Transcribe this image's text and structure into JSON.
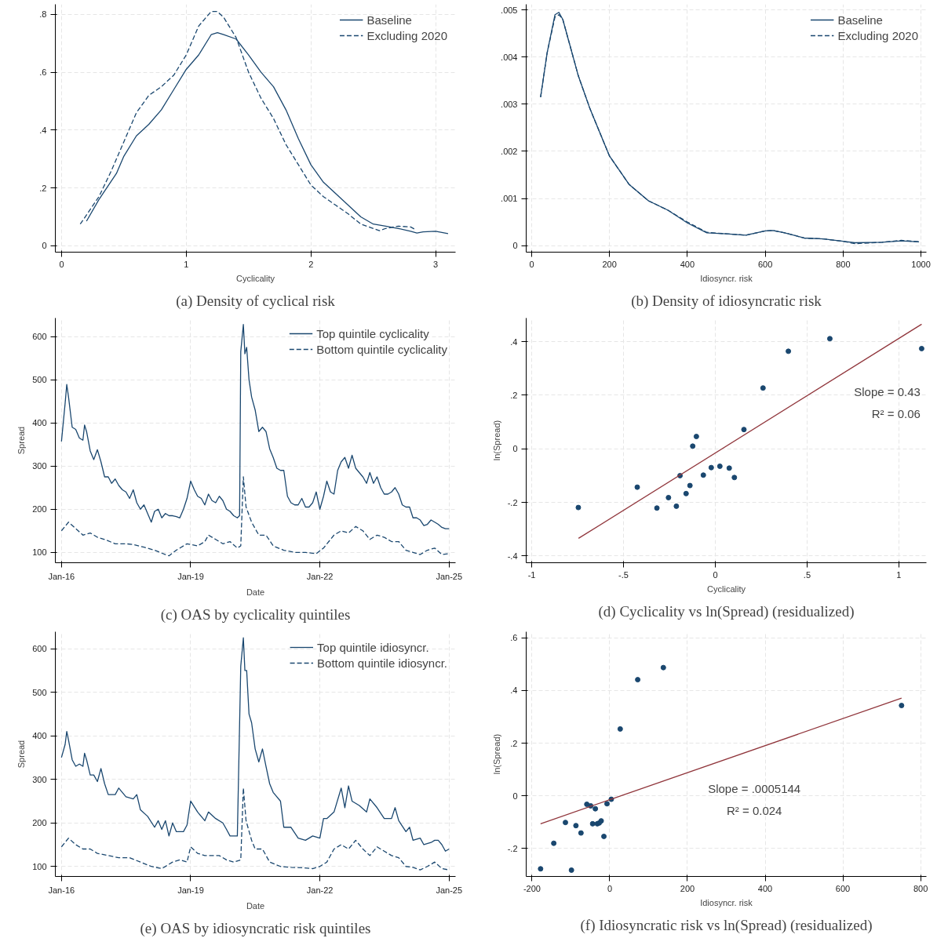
{
  "chart_data": [
    {
      "type": "line",
      "title": "(a) Density of cyclical risk",
      "xlabel": "Cyclicality",
      "xlim": [
        -0.05,
        3.16
      ],
      "ylim": [
        -0.022,
        0.835
      ],
      "xticks": [
        0,
        1,
        2,
        3
      ],
      "yticks": [
        0,
        {
          "value": 0.2,
          "label": ".2"
        },
        {
          "value": 0.4,
          "label": ".4"
        },
        {
          "value": 0.6,
          "label": ".6"
        },
        {
          "value": 0.8,
          "label": ".8"
        }
      ],
      "grid": true,
      "legend": "top right",
      "series": [
        {
          "name": "Baseline",
          "color": "#1a476f",
          "line_style": "solid",
          "x": [
            0.2,
            0.3,
            0.44,
            0.5,
            0.6,
            0.7,
            0.8,
            0.9,
            1.0,
            1.1,
            1.2,
            1.25,
            1.3,
            1.4,
            1.5,
            1.6,
            1.7,
            1.8,
            1.9,
            2.0,
            2.1,
            2.2,
            2.3,
            2.4,
            2.5,
            2.6,
            2.7,
            2.8,
            2.85,
            2.9,
            3.0,
            3.1
          ],
          "values": [
            0.085,
            0.16,
            0.25,
            0.31,
            0.38,
            0.42,
            0.47,
            0.54,
            0.61,
            0.66,
            0.73,
            0.737,
            0.73,
            0.715,
            0.66,
            0.6,
            0.55,
            0.47,
            0.37,
            0.28,
            0.22,
            0.18,
            0.14,
            0.1,
            0.075,
            0.068,
            0.06,
            0.05,
            0.044,
            0.048,
            0.05,
            0.042
          ]
        },
        {
          "name": "Excluding 2020",
          "color": "#1a476f",
          "line_style": "dashed",
          "x": [
            0.15,
            0.3,
            0.4,
            0.5,
            0.6,
            0.7,
            0.8,
            0.9,
            1.0,
            1.1,
            1.2,
            1.25,
            1.3,
            1.4,
            1.5,
            1.6,
            1.7,
            1.8,
            1.9,
            2.0,
            2.1,
            2.2,
            2.3,
            2.4,
            2.5,
            2.55,
            2.6,
            2.7,
            2.8,
            2.83
          ],
          "values": [
            0.075,
            0.17,
            0.26,
            0.36,
            0.46,
            0.52,
            0.55,
            0.59,
            0.66,
            0.76,
            0.81,
            0.81,
            0.79,
            0.72,
            0.6,
            0.51,
            0.44,
            0.35,
            0.28,
            0.21,
            0.17,
            0.14,
            0.11,
            0.075,
            0.06,
            0.052,
            0.06,
            0.068,
            0.065,
            0.058
          ]
        }
      ]
    },
    {
      "type": "line",
      "title": "(b) Density of idiosyncratic risk",
      "xlabel": "Idiosyncr. risk",
      "xlim": [
        -14,
        1014
      ],
      "ylim": [
        -0.00014,
        0.00512
      ],
      "xticks": [
        0,
        200,
        400,
        600,
        800,
        1000
      ],
      "yticks": [
        0,
        {
          "value": 0.001,
          "label": ".001"
        },
        {
          "value": 0.002,
          "label": ".002"
        },
        {
          "value": 0.003,
          "label": ".003"
        },
        {
          "value": 0.004,
          "label": ".004"
        },
        {
          "value": 0.005,
          "label": ".005"
        }
      ],
      "grid": true,
      "legend": "top right",
      "series": [
        {
          "name": "Baseline",
          "color": "#1a476f",
          "line_style": "solid",
          "x": [
            23,
            40,
            60,
            70,
            80,
            100,
            120,
            150,
            200,
            250,
            300,
            350,
            400,
            450,
            500,
            550,
            600,
            620,
            650,
            700,
            750,
            800,
            830,
            900,
            950,
            995
          ],
          "values": [
            0.00315,
            0.0041,
            0.0049,
            0.00495,
            0.0048,
            0.0042,
            0.0036,
            0.0029,
            0.0019,
            0.0013,
            0.00095,
            0.00075,
            0.00048,
            0.00027,
            0.00025,
            0.00022,
            0.00031,
            0.00032,
            0.00027,
            0.00016,
            0.00014,
            9e-05,
            6e-05,
            7e-05,
            0.0001,
            8e-05
          ]
        },
        {
          "name": "Excluding 2020",
          "color": "#1a476f",
          "line_style": "dashed",
          "x": [
            23,
            40,
            60,
            70,
            80,
            100,
            120,
            150,
            200,
            250,
            300,
            350,
            400,
            450,
            500,
            550,
            600,
            620,
            650,
            700,
            750,
            800,
            830,
            900,
            950,
            995
          ],
          "values": [
            0.00315,
            0.0041,
            0.00485,
            0.0049,
            0.0048,
            0.0042,
            0.0036,
            0.0029,
            0.0019,
            0.0013,
            0.00095,
            0.00075,
            0.0005,
            0.00028,
            0.00025,
            0.00022,
            0.00031,
            0.00032,
            0.00027,
            0.00016,
            0.00014,
            9e-05,
            4e-05,
            7e-05,
            0.00011,
            8e-05
          ]
        }
      ]
    },
    {
      "type": "line",
      "title": "(c) OAS by cyclicality quintiles",
      "xlabel": "Date",
      "ylabel": "Spread",
      "xlim": [
        "2015-11-10",
        "2025-02-25"
      ],
      "ylim": [
        76,
        643
      ],
      "xticks": [
        {
          "value": "2016-01",
          "label": "Jan-16"
        },
        {
          "value": "2019-01",
          "label": "Jan-19"
        },
        {
          "value": "2022-01",
          "label": "Jan-22"
        },
        {
          "value": "2025-01",
          "label": "Jan-25"
        }
      ],
      "yticks": [
        100,
        200,
        300,
        400,
        500,
        600
      ],
      "grid": true,
      "legend": "top right",
      "series": [
        {
          "name": "Top quintile cyclicality",
          "color": "#1a476f",
          "line_style": "solid",
          "x": [
            "2016-01",
            "2016-02",
            "2016-02-15",
            "2016-03",
            "2016-04",
            "2016-05",
            "2016-06",
            "2016-07",
            "2016-07-15",
            "2016-08",
            "2016-09",
            "2016-10",
            "2016-11",
            "2016-12",
            "2017-01",
            "2017-02",
            "2017-03",
            "2017-04",
            "2017-05",
            "2017-06",
            "2017-07",
            "2017-08",
            "2017-09",
            "2017-10",
            "2017-11",
            "2017-12",
            "2018-01",
            "2018-02",
            "2018-03",
            "2018-04",
            "2018-05",
            "2018-06",
            "2018-07",
            "2018-08",
            "2018-09",
            "2018-10",
            "2018-11",
            "2018-12",
            "2019-01",
            "2019-02",
            "2019-03",
            "2019-04",
            "2019-05",
            "2019-06",
            "2019-07",
            "2019-08",
            "2019-09",
            "2019-10",
            "2019-11",
            "2019-12",
            "2020-01",
            "2020-02",
            "2020-02-20",
            "2020-03-01",
            "2020-03-23",
            "2020-04-05",
            "2020-04-20",
            "2020-05-10",
            "2020-06",
            "2020-07",
            "2020-08",
            "2020-09",
            "2020-10",
            "2020-11",
            "2020-12",
            "2021-01",
            "2021-02",
            "2021-03",
            "2021-04",
            "2021-05",
            "2021-06",
            "2021-07",
            "2021-08",
            "2021-09",
            "2021-10",
            "2021-11",
            "2021-12",
            "2022-01",
            "2022-02",
            "2022-03",
            "2022-04",
            "2022-05",
            "2022-06",
            "2022-07",
            "2022-08",
            "2022-09",
            "2022-10",
            "2022-11",
            "2022-12",
            "2023-01",
            "2023-02",
            "2023-03",
            "2023-04",
            "2023-05",
            "2023-06",
            "2023-07",
            "2023-08",
            "2023-09",
            "2023-10",
            "2023-11",
            "2023-12",
            "2024-01",
            "2024-02",
            "2024-03",
            "2024-04",
            "2024-05",
            "2024-06",
            "2024-07",
            "2024-08",
            "2024-09",
            "2024-10",
            "2024-11",
            "2024-12",
            "2025-01"
          ],
          "values": [
            357,
            445,
            489,
            460,
            390,
            385,
            365,
            360,
            395,
            380,
            335,
            315,
            338,
            310,
            275,
            275,
            260,
            270,
            255,
            245,
            240,
            225,
            245,
            215,
            200,
            210,
            190,
            170,
            195,
            200,
            180,
            190,
            185,
            185,
            183,
            180,
            200,
            225,
            265,
            245,
            230,
            225,
            210,
            235,
            220,
            215,
            230,
            220,
            200,
            195,
            185,
            180,
            185,
            565,
            628,
            560,
            575,
            500,
            460,
            430,
            380,
            390,
            380,
            340,
            320,
            295,
            290,
            290,
            230,
            215,
            210,
            210,
            225,
            205,
            205,
            215,
            240,
            200,
            230,
            265,
            240,
            235,
            290,
            310,
            320,
            295,
            325,
            295,
            285,
            275,
            260,
            285,
            260,
            275,
            250,
            235,
            235,
            240,
            250,
            235,
            210,
            205,
            205,
            180,
            180,
            175,
            162,
            165,
            175,
            170,
            165,
            158,
            155,
            155
          ]
        },
        {
          "name": "Bottom quintile cyclicality",
          "color": "#1a476f",
          "line_style": "dashed",
          "x": [
            "2016-01",
            "2016-03",
            "2016-05",
            "2016-07",
            "2016-09",
            "2016-11",
            "2017-01",
            "2017-04",
            "2017-07",
            "2017-09",
            "2017-12",
            "2018-03",
            "2018-06",
            "2018-07",
            "2018-09",
            "2018-12",
            "2019-03",
            "2019-05",
            "2019-06",
            "2019-08",
            "2019-10",
            "2019-12",
            "2020-02",
            "2020-03-01",
            "2020-03-23",
            "2020-04-15",
            "2020-06",
            "2020-08",
            "2020-10",
            "2020-12",
            "2021-03",
            "2021-06",
            "2021-09",
            "2021-12",
            "2022-02",
            "2022-05",
            "2022-07",
            "2022-09",
            "2022-11",
            "2023-01",
            "2023-03",
            "2023-05",
            "2023-07",
            "2023-09",
            "2023-11",
            "2024-01",
            "2024-03",
            "2024-05",
            "2024-07",
            "2024-09",
            "2024-11",
            "2025-01"
          ],
          "values": [
            150,
            170,
            155,
            140,
            145,
            135,
            130,
            120,
            120,
            118,
            112,
            105,
            95,
            92,
            105,
            120,
            115,
            125,
            140,
            130,
            120,
            125,
            110,
            115,
            275,
            205,
            170,
            140,
            140,
            115,
            105,
            100,
            100,
            97,
            110,
            140,
            150,
            145,
            160,
            150,
            130,
            140,
            135,
            125,
            125,
            105,
            100,
            95,
            105,
            110,
            95,
            97
          ]
        }
      ]
    },
    {
      "type": "scatter",
      "title": "(d) Cyclicality vs ln(Spread) (residualized)",
      "xlabel": "Cyclicality",
      "ylabel": "ln(Spread)",
      "xlim": [
        -1.03,
        1.15
      ],
      "ylim": [
        -0.425,
        0.488
      ],
      "xticks": [
        -1,
        {
          "value": -0.5,
          "label": "-.5"
        },
        0,
        {
          "value": 0.5,
          "label": ".5"
        },
        1
      ],
      "yticks": [
        {
          "value": -0.4,
          "label": "-.4"
        },
        {
          "value": -0.2,
          "label": "-.2"
        },
        0,
        {
          "value": 0.2,
          "label": ".2"
        },
        {
          "value": 0.4,
          "label": ".4"
        }
      ],
      "grid": true,
      "annotations": [
        "Slope = 0.43",
        "R² = 0.06"
      ],
      "series": [
        {
          "type": "scatter",
          "marker": "circle",
          "color": "#1a476f",
          "x": [
            -0.746,
            -0.425,
            -0.318,
            -0.255,
            -0.212,
            -0.192,
            -0.159,
            -0.138,
            -0.123,
            -0.103,
            -0.065,
            -0.022,
            0.025,
            0.076,
            0.104,
            0.156,
            0.26,
            0.398,
            0.624,
            1.124
          ],
          "values": [
            -0.219,
            -0.143,
            -0.221,
            -0.182,
            -0.214,
            -0.1,
            -0.167,
            -0.137,
            0.01,
            0.046,
            -0.098,
            -0.07,
            -0.065,
            -0.072,
            -0.107,
            0.072,
            0.227,
            0.364,
            0.411,
            0.374
          ]
        },
        {
          "type": "line",
          "marker": "none",
          "color": "#90353b",
          "line_style": "solid",
          "x": [
            -0.745,
            1.124
          ],
          "values": [
            -0.334,
            0.465
          ]
        }
      ]
    },
    {
      "type": "line",
      "title": "(e) OAS by idiosyncratic risk quintiles",
      "xlabel": "Date",
      "ylabel": "Spread",
      "xlim": [
        "2015-11-10",
        "2025-02-25"
      ],
      "ylim": [
        77,
        639
      ],
      "xticks": [
        {
          "value": "2016-01",
          "label": "Jan-16"
        },
        {
          "value": "2019-01",
          "label": "Jan-19"
        },
        {
          "value": "2022-01",
          "label": "Jan-22"
        },
        {
          "value": "2025-01",
          "label": "Jan-25"
        }
      ],
      "yticks": [
        100,
        200,
        300,
        400,
        500,
        600
      ],
      "grid": true,
      "legend": "top right",
      "series": [
        {
          "name": "Top quintile idiosyncr.",
          "color": "#1a476f",
          "line_style": "solid",
          "x": [
            "2016-01",
            "2016-02",
            "2016-02-15",
            "2016-03",
            "2016-04",
            "2016-05",
            "2016-06",
            "2016-07",
            "2016-07-15",
            "2016-08",
            "2016-09",
            "2016-10",
            "2016-11",
            "2016-12",
            "2017-01",
            "2017-02",
            "2017-04",
            "2017-05",
            "2017-07",
            "2017-09",
            "2017-10",
            "2017-11",
            "2018-01",
            "2018-03",
            "2018-04",
            "2018-05",
            "2018-06",
            "2018-07",
            "2018-08",
            "2018-09",
            "2018-11",
            "2018-12",
            "2019-01",
            "2019-03",
            "2019-05",
            "2019-06",
            "2019-08",
            "2019-10",
            "2019-11",
            "2019-12",
            "2020-02",
            "2020-03-01",
            "2020-03-23",
            "2020-04-05",
            "2020-04-20",
            "2020-05-10",
            "2020-06",
            "2020-07",
            "2020-08",
            "2020-09",
            "2020-10",
            "2020-11",
            "2020-12",
            "2021-02",
            "2021-03",
            "2021-05",
            "2021-07",
            "2021-09",
            "2021-11",
            "2022-01",
            "2022-02",
            "2022-03",
            "2022-05",
            "2022-07",
            "2022-08",
            "2022-09",
            "2022-10",
            "2022-12",
            "2023-02",
            "2023-03",
            "2023-05",
            "2023-07",
            "2023-09",
            "2023-10",
            "2023-11",
            "2024-01",
            "2024-02",
            "2024-03",
            "2024-05",
            "2024-06",
            "2024-08",
            "2024-09",
            "2024-10",
            "2024-11",
            "2024-12",
            "2025-01"
          ],
          "values": [
            350,
            380,
            410,
            390,
            345,
            330,
            335,
            330,
            360,
            345,
            310,
            310,
            295,
            325,
            290,
            265,
            265,
            280,
            260,
            255,
            265,
            230,
            215,
            190,
            205,
            185,
            205,
            170,
            200,
            180,
            180,
            195,
            250,
            225,
            205,
            225,
            210,
            200,
            185,
            170,
            170,
            560,
            625,
            550,
            550,
            450,
            430,
            370,
            340,
            370,
            330,
            290,
            270,
            250,
            190,
            190,
            165,
            160,
            170,
            165,
            210,
            210,
            225,
            280,
            235,
            285,
            250,
            240,
            225,
            255,
            235,
            210,
            210,
            235,
            205,
            180,
            190,
            160,
            165,
            150,
            155,
            160,
            160,
            150,
            135,
            140
          ]
        },
        {
          "name": "Bottom quintile idiosyncr.",
          "color": "#1a476f",
          "line_style": "dashed",
          "x": [
            "2016-01",
            "2016-03",
            "2016-05",
            "2016-07",
            "2016-09",
            "2016-11",
            "2017-02",
            "2017-05",
            "2017-08",
            "2017-11",
            "2018-02",
            "2018-05",
            "2018-08",
            "2018-10",
            "2018-12",
            "2019-01",
            "2019-03",
            "2019-05",
            "2019-07",
            "2019-09",
            "2019-11",
            "2020-01",
            "2020-03-01",
            "2020-03-23",
            "2020-04-15",
            "2020-06",
            "2020-07",
            "2020-09",
            "2020-11",
            "2021-02",
            "2021-05",
            "2021-08",
            "2021-11",
            "2022-01",
            "2022-03",
            "2022-05",
            "2022-07",
            "2022-09",
            "2022-11",
            "2023-01",
            "2023-03",
            "2023-05",
            "2023-07",
            "2023-09",
            "2023-11",
            "2024-01",
            "2024-03",
            "2024-05",
            "2024-07",
            "2024-09",
            "2024-11",
            "2025-01"
          ],
          "values": [
            145,
            165,
            150,
            140,
            140,
            130,
            125,
            120,
            120,
            110,
            100,
            95,
            110,
            115,
            110,
            145,
            130,
            125,
            125,
            125,
            115,
            110,
            115,
            280,
            205,
            160,
            140,
            140,
            110,
            100,
            98,
            97,
            95,
            100,
            110,
            140,
            150,
            140,
            160,
            140,
            125,
            145,
            135,
            125,
            120,
            100,
            98,
            92,
            100,
            110,
            95,
            92
          ]
        }
      ]
    },
    {
      "type": "scatter",
      "title": "(f) Idiosyncratic risk vs ln(Spread) (residualized)",
      "xlabel": "Idiosyncr. risk",
      "ylabel": "ln(Spread)",
      "xlim": [
        -215,
        815
      ],
      "ylim": [
        -0.306,
        0.623
      ],
      "xticks": [
        -200,
        0,
        200,
        400,
        600,
        800
      ],
      "yticks": [
        {
          "value": -0.2,
          "label": "-.2"
        },
        0,
        {
          "value": 0.2,
          "label": ".2"
        },
        {
          "value": 0.4,
          "label": ".4"
        },
        {
          "value": 0.6,
          "label": ".6"
        }
      ],
      "grid": true,
      "annotations": [
        "Slope = .0005144",
        "R² = 0.024"
      ],
      "series": [
        {
          "type": "scatter",
          "marker": "circle",
          "color": "#1a476f",
          "x": [
            -178,
            -144,
            -114,
            -98.5,
            -87,
            -74,
            -59,
            -49,
            -44,
            -37,
            -32,
            -27,
            -22,
            -15,
            -7,
            4,
            27,
            72,
            138,
            751
          ],
          "values": [
            -0.277,
            -0.18,
            -0.101,
            -0.282,
            -0.113,
            -0.141,
            -0.032,
            -0.038,
            -0.106,
            -0.049,
            -0.106,
            -0.103,
            -0.095,
            -0.154,
            -0.03,
            -0.013,
            0.254,
            0.441,
            0.487,
            0.343
          ]
        },
        {
          "type": "line",
          "marker": "none",
          "color": "#90353b",
          "line_style": "solid",
          "x": [
            -178,
            751
          ],
          "values": [
            -0.106,
            0.371
          ]
        }
      ]
    }
  ]
}
